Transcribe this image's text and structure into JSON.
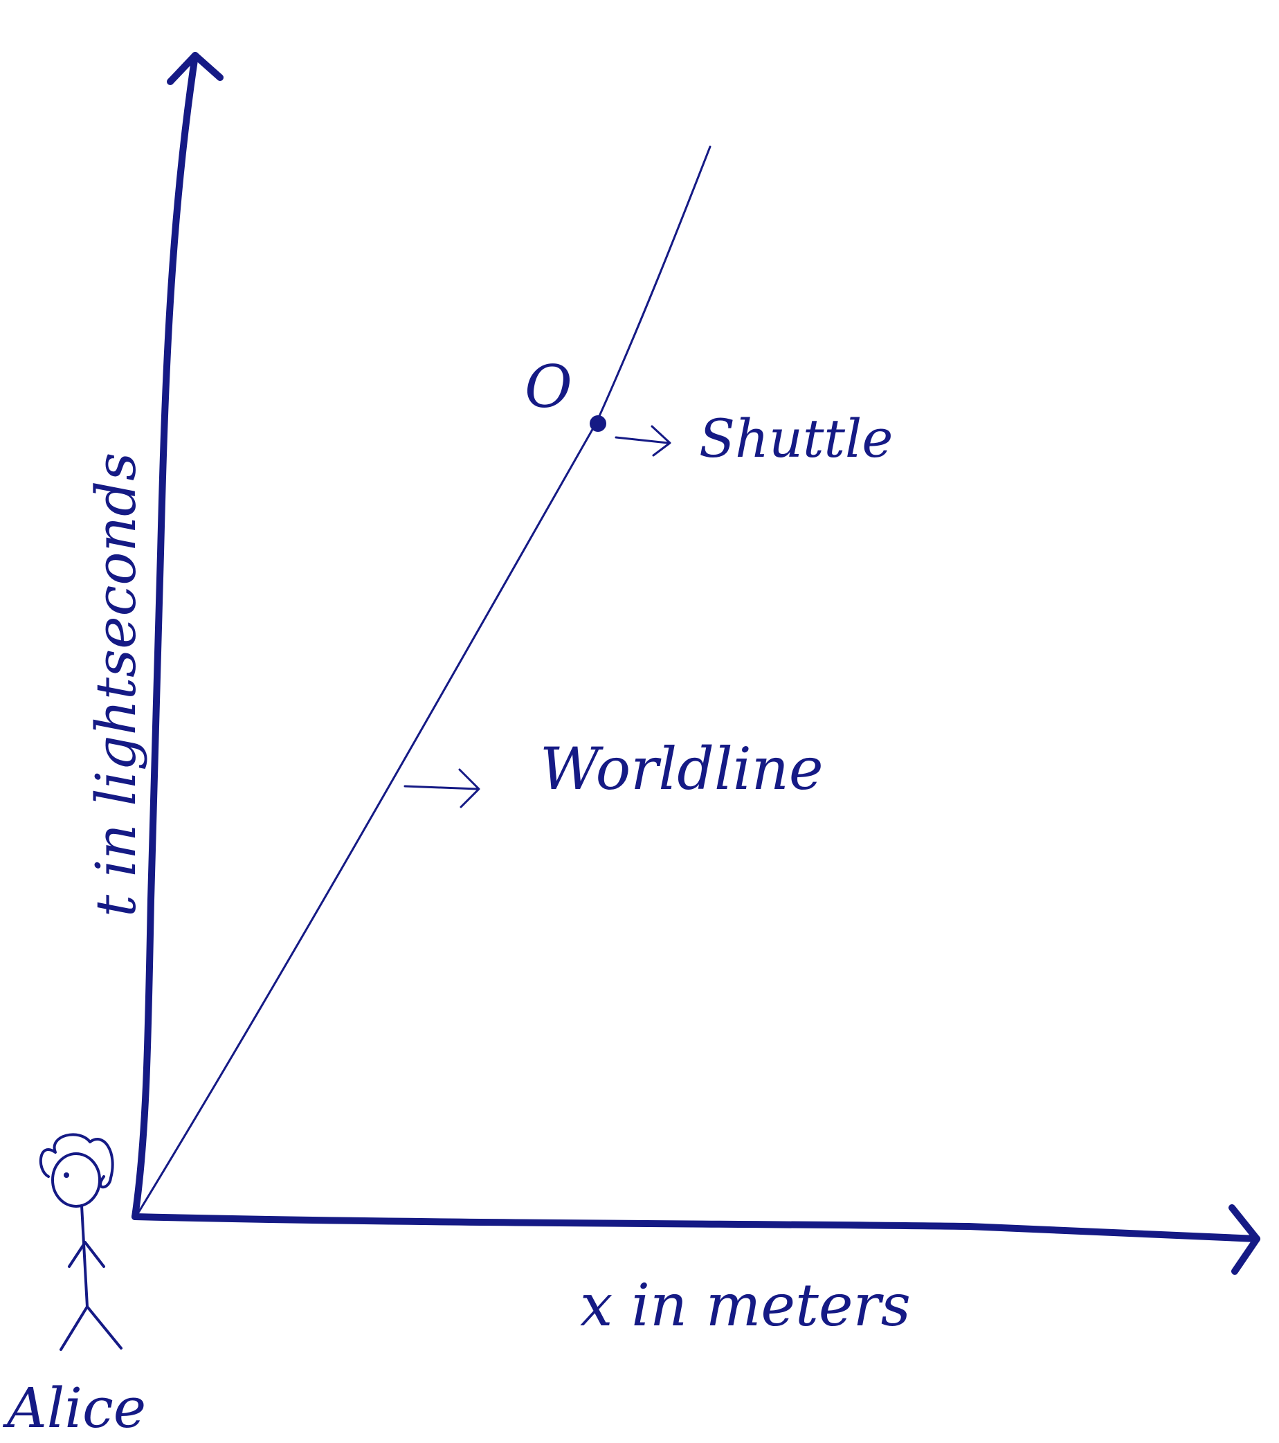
{
  "axes": {
    "y_label": "t in lightseconds",
    "x_label": "x in meters"
  },
  "annotations": {
    "event": "O",
    "shuttle": "Shuttle",
    "worldline": "Worldline",
    "observer": "Alice"
  },
  "colors": {
    "ink": "#151a85",
    "background": "#ffffff"
  }
}
